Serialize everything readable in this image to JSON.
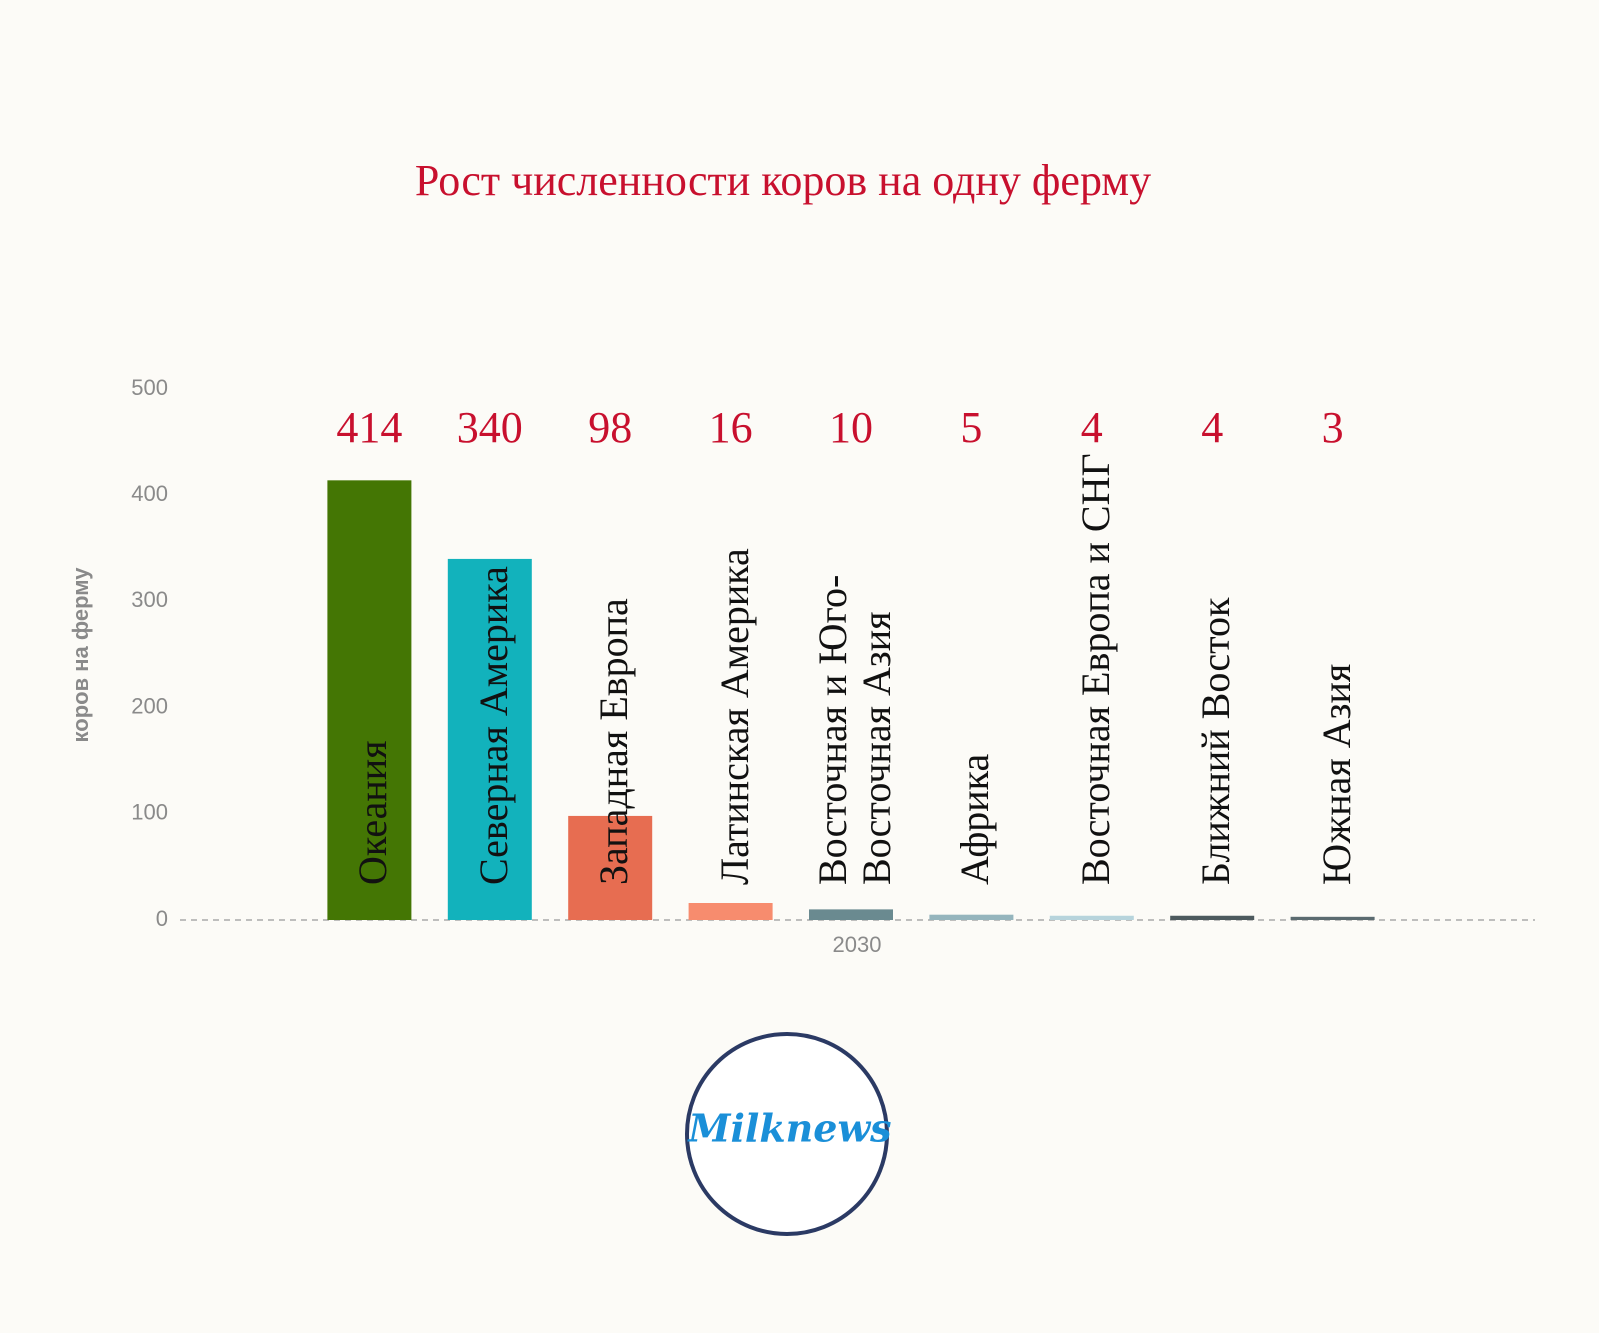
{
  "chart_data": {
    "type": "bar",
    "title": "Рост численности коров на одну ферму",
    "y_label": "коров на ферму",
    "categories": [
      "2030"
    ],
    "series": [
      {
        "name": "Океания",
        "color": "#447604",
        "values": [
          414
        ]
      },
      {
        "name": "Северная Америка",
        "color": "#12b2bc",
        "values": [
          340
        ]
      },
      {
        "name": "Западная Европа",
        "color": "#e76d51",
        "values": [
          98
        ]
      },
      {
        "name": "Латинская Америка",
        "color": "#f78c6e",
        "values": [
          16
        ]
      },
      {
        "name": "Восточная и Юго-Восточная Азия",
        "color": "#6a8a90",
        "values": [
          10
        ]
      },
      {
        "name": "Африка",
        "color": "#95b5bd",
        "values": [
          5
        ]
      },
      {
        "name": "Восточная Европа и СНГ",
        "color": "#b7d4dc",
        "values": [
          4
        ]
      },
      {
        "name": "Ближний Восток",
        "color": "#4d5a5e",
        "values": [
          4
        ]
      },
      {
        "name": "Южная Азия",
        "color": "#5b6b70",
        "values": [
          3
        ]
      }
    ],
    "ylim": [
      0,
      500
    ],
    "yticks": [
      0,
      100,
      200,
      300,
      400,
      500
    ],
    "zero_line": true,
    "logo": "Milknews"
  }
}
